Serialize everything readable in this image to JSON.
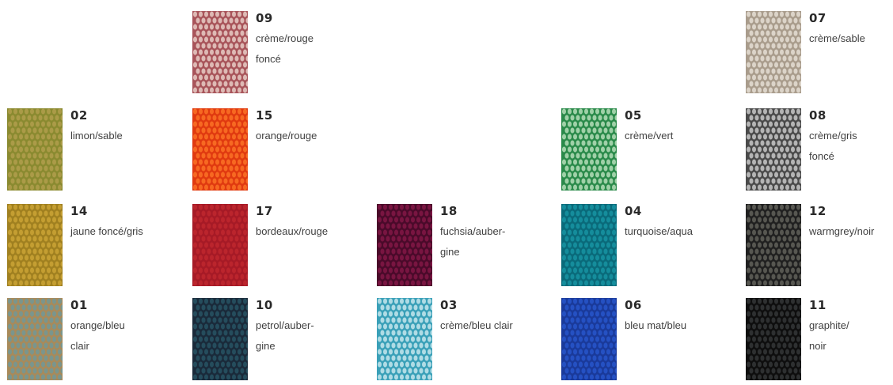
{
  "swatches": [
    {
      "code": "09",
      "name": "crème/rouge\nfoncé",
      "colors": [
        "#a8545a",
        "#f0dcd4"
      ]
    },
    {
      "code": "07",
      "name": "crème/sable",
      "colors": [
        "#a99c8c",
        "#ede7dd"
      ]
    },
    {
      "code": "02",
      "name": "limon/sable",
      "colors": [
        "#8a8a30",
        "#b5a050"
      ]
    },
    {
      "code": "15",
      "name": "orange/rouge",
      "colors": [
        "#e03a10",
        "#ff7a28"
      ]
    },
    {
      "code": "05",
      "name": "crème/vert",
      "colors": [
        "#2a8a4a",
        "#c8e8c8"
      ]
    },
    {
      "code": "08",
      "name": "crème/gris\nfoncé",
      "colors": [
        "#4a4a4a",
        "#dadada"
      ]
    },
    {
      "code": "14",
      "name": "jaune foncé/gris",
      "colors": [
        "#a08020",
        "#d0a838"
      ]
    },
    {
      "code": "17",
      "name": "bordeaux/rouge",
      "colors": [
        "#a61a26",
        "#c22a30"
      ]
    },
    {
      "code": "18",
      "name": "fuchsia/auber-\ngine",
      "colors": [
        "#4a0a2a",
        "#8a1a4a"
      ]
    },
    {
      "code": "04",
      "name": "turquoise/aqua",
      "colors": [
        "#0a6a7a",
        "#1a9aa8"
      ]
    },
    {
      "code": "12",
      "name": "warmgrey/noir",
      "colors": [
        "#202020",
        "#6a6a62"
      ]
    },
    {
      "code": "01",
      "name": "orange/bleu\nclair",
      "colors": [
        "#a88a5a",
        "#6a9aa0"
      ]
    },
    {
      "code": "10",
      "name": "petrol/auber-\ngine",
      "colors": [
        "#1a2a3a",
        "#2a5a6a"
      ]
    },
    {
      "code": "03",
      "name": "crème/bleu clair",
      "colors": [
        "#3aa0b8",
        "#d8f0f4"
      ]
    },
    {
      "code": "06",
      "name": "bleu mat/bleu",
      "colors": [
        "#1a3a9a",
        "#2a5ad0"
      ]
    },
    {
      "code": "11",
      "name": "graphite/\nnoir",
      "colors": [
        "#0e0e0e",
        "#3a3c3e"
      ]
    }
  ]
}
